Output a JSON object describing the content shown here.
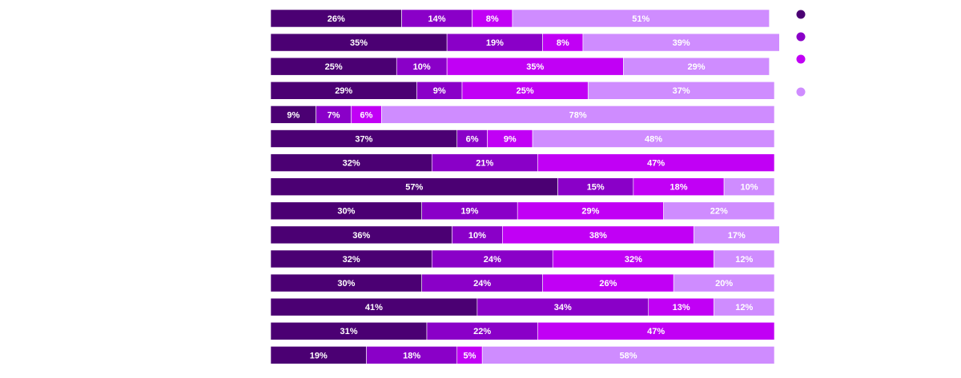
{
  "chart_data": {
    "type": "stacked-bar-horizontal",
    "categories": [
      null,
      null,
      null,
      null,
      null,
      null,
      null,
      null,
      null,
      null,
      null,
      null,
      null,
      null,
      null
    ],
    "xlim": [
      0,
      100
    ],
    "series": [
      {
        "color": "#4b0073",
        "values": [
          26,
          35,
          25,
          29,
          9,
          37,
          32,
          57,
          30,
          36,
          32,
          30,
          41,
          31,
          19
        ],
        "value_labels": [
          "26%",
          "35%",
          "25%",
          "29%",
          "9%",
          "37%",
          "32%",
          "57%",
          "30%",
          "36%",
          "32%",
          "30%",
          "41%",
          "31%",
          "19%"
        ]
      },
      {
        "color": "#8a00c8",
        "values": [
          14,
          19,
          10,
          9,
          7,
          6,
          21,
          15,
          19,
          10,
          24,
          24,
          34,
          22,
          18
        ],
        "value_labels": [
          "14%",
          "19%",
          "10%",
          "9%",
          "7%",
          "6%",
          "21%",
          "15%",
          "19%",
          "10%",
          "24%",
          "24%",
          "34%",
          "22%",
          "18%"
        ]
      },
      {
        "color": "#c100f5",
        "values": [
          8,
          8,
          35,
          25,
          6,
          9,
          47,
          18,
          29,
          38,
          32,
          26,
          13,
          47,
          5
        ],
        "value_labels": [
          "8%",
          "8%",
          "35%",
          "25%",
          "6%",
          "9%",
          "47%",
          "18%",
          "29%",
          "38%",
          "32%",
          "26%",
          "13%",
          "47%",
          "5%"
        ]
      },
      {
        "color": "#cf8cff",
        "values": [
          51,
          39,
          29,
          37,
          78,
          48,
          null,
          10,
          22,
          17,
          12,
          20,
          12,
          null,
          58
        ],
        "value_labels": [
          "51%",
          "39%",
          "29%",
          "37%",
          "78%",
          "48%",
          null,
          "10%",
          "22%",
          "17%",
          "12%",
          "20%",
          "12%",
          null,
          "58%"
        ]
      }
    ]
  }
}
